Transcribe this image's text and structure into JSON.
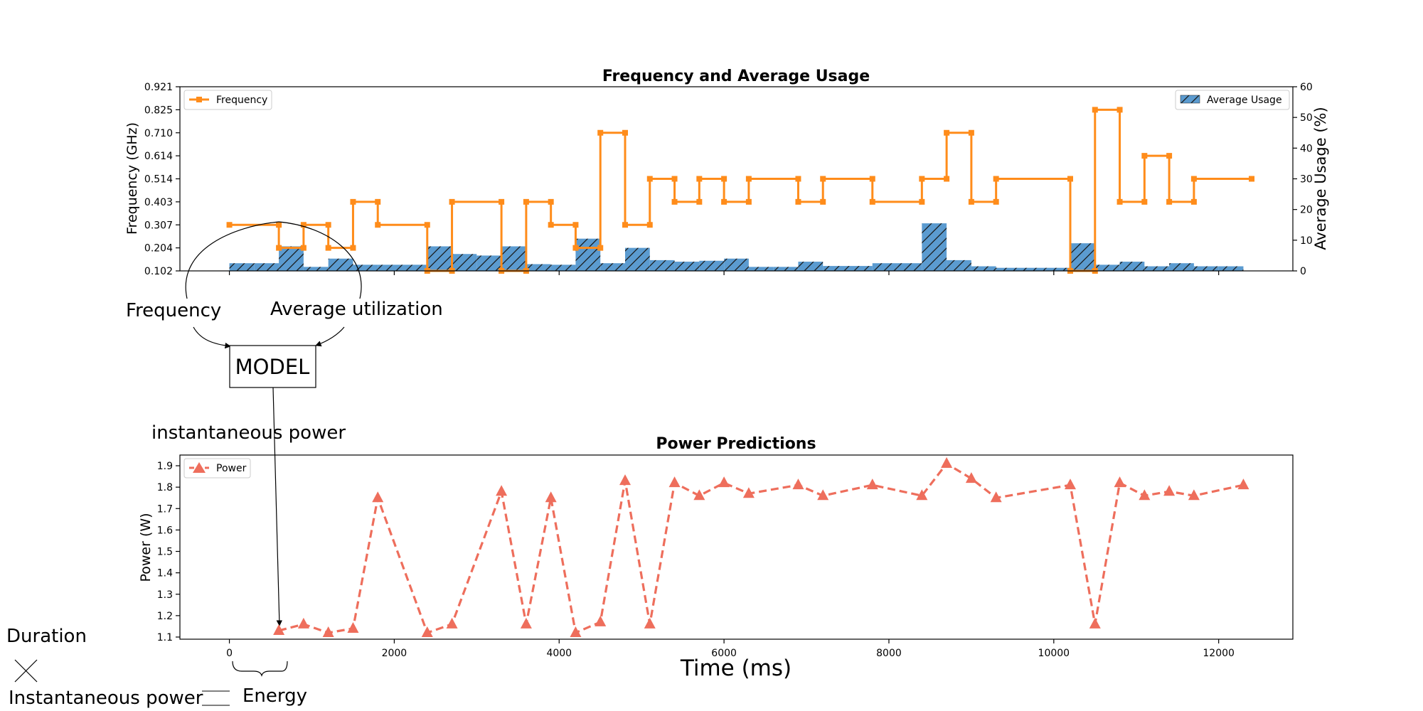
{
  "chart_data": [
    {
      "type": "bar",
      "title": "Frequency and Average Usage",
      "xlim": [
        -600,
        12900
      ],
      "ylabel_left": "Frequency (GHz)",
      "ylabel_right": "Average Usage (%)",
      "left_ticks": [
        "0.102",
        "0.204",
        "0.307",
        "0.403",
        "0.514",
        "0.614",
        "0.710",
        "0.825",
        "0.921"
      ],
      "right_ticks": [
        "0",
        "10",
        "20",
        "30",
        "40",
        "50",
        "60"
      ],
      "right_ylim": [
        0,
        60
      ],
      "legend_left": {
        "label": "Frequency",
        "placement": "top-left",
        "color": "#ff8c1a"
      },
      "legend_right": {
        "label": "Average Usage",
        "placement": "top-right",
        "color": "#5b9bd0"
      },
      "bar_width": 300,
      "bars": [
        {
          "x": 150,
          "v": 2.5
        },
        {
          "x": 450,
          "v": 2.5
        },
        {
          "x": 750,
          "v": 8
        },
        {
          "x": 1050,
          "v": 1.3
        },
        {
          "x": 1350,
          "v": 4
        },
        {
          "x": 1650,
          "v": 2
        },
        {
          "x": 1950,
          "v": 2
        },
        {
          "x": 2250,
          "v": 2
        },
        {
          "x": 2550,
          "v": 8
        },
        {
          "x": 2850,
          "v": 5.5
        },
        {
          "x": 3150,
          "v": 5
        },
        {
          "x": 3450,
          "v": 8
        },
        {
          "x": 3750,
          "v": 2.2
        },
        {
          "x": 4050,
          "v": 2
        },
        {
          "x": 4350,
          "v": 10.5
        },
        {
          "x": 4650,
          "v": 2.5
        },
        {
          "x": 4950,
          "v": 7.5
        },
        {
          "x": 5250,
          "v": 3.5
        },
        {
          "x": 5550,
          "v": 3
        },
        {
          "x": 5850,
          "v": 3.3
        },
        {
          "x": 6150,
          "v": 4
        },
        {
          "x": 6450,
          "v": 1.3
        },
        {
          "x": 6750,
          "v": 1.3
        },
        {
          "x": 7050,
          "v": 3
        },
        {
          "x": 7350,
          "v": 1.6
        },
        {
          "x": 7650,
          "v": 1.6
        },
        {
          "x": 7950,
          "v": 2.5
        },
        {
          "x": 8250,
          "v": 2.5
        },
        {
          "x": 8550,
          "v": 15.5
        },
        {
          "x": 8850,
          "v": 3.5
        },
        {
          "x": 9150,
          "v": 1.5
        },
        {
          "x": 9450,
          "v": 1
        },
        {
          "x": 9750,
          "v": 1
        },
        {
          "x": 10050,
          "v": 1
        },
        {
          "x": 10350,
          "v": 9
        },
        {
          "x": 10650,
          "v": 2
        },
        {
          "x": 10950,
          "v": 3
        },
        {
          "x": 11250,
          "v": 1.5
        },
        {
          "x": 11550,
          "v": 2.5
        },
        {
          "x": 11850,
          "v": 1.5
        },
        {
          "x": 12150,
          "v": 1.5
        }
      ],
      "frequency_step_series": [
        {
          "x": 0,
          "f": 0.307
        },
        {
          "x": 600,
          "f": 0.307
        },
        {
          "x": 600,
          "f": 0.204
        },
        {
          "x": 900,
          "f": 0.204
        },
        {
          "x": 900,
          "f": 0.307
        },
        {
          "x": 1200,
          "f": 0.307
        },
        {
          "x": 1200,
          "f": 0.204
        },
        {
          "x": 1500,
          "f": 0.204
        },
        {
          "x": 1500,
          "f": 0.403
        },
        {
          "x": 1800,
          "f": 0.403
        },
        {
          "x": 1800,
          "f": 0.307
        },
        {
          "x": 2400,
          "f": 0.307
        },
        {
          "x": 2400,
          "f": 0.102
        },
        {
          "x": 2700,
          "f": 0.102
        },
        {
          "x": 2700,
          "f": 0.403
        },
        {
          "x": 3300,
          "f": 0.403
        },
        {
          "x": 3300,
          "f": 0.102
        },
        {
          "x": 3600,
          "f": 0.102
        },
        {
          "x": 3600,
          "f": 0.403
        },
        {
          "x": 3900,
          "f": 0.403
        },
        {
          "x": 3900,
          "f": 0.307
        },
        {
          "x": 4200,
          "f": 0.307
        },
        {
          "x": 4200,
          "f": 0.204
        },
        {
          "x": 4500,
          "f": 0.204
        },
        {
          "x": 4500,
          "f": 0.71
        },
        {
          "x": 4800,
          "f": 0.71
        },
        {
          "x": 4800,
          "f": 0.307
        },
        {
          "x": 5100,
          "f": 0.307
        },
        {
          "x": 5100,
          "f": 0.514
        },
        {
          "x": 5400,
          "f": 0.514
        },
        {
          "x": 5400,
          "f": 0.403
        },
        {
          "x": 5700,
          "f": 0.403
        },
        {
          "x": 5700,
          "f": 0.514
        },
        {
          "x": 6000,
          "f": 0.514
        },
        {
          "x": 6000,
          "f": 0.403
        },
        {
          "x": 6300,
          "f": 0.403
        },
        {
          "x": 6300,
          "f": 0.514
        },
        {
          "x": 6900,
          "f": 0.514
        },
        {
          "x": 6900,
          "f": 0.403
        },
        {
          "x": 7200,
          "f": 0.403
        },
        {
          "x": 7200,
          "f": 0.514
        },
        {
          "x": 7800,
          "f": 0.514
        },
        {
          "x": 7800,
          "f": 0.403
        },
        {
          "x": 8400,
          "f": 0.403
        },
        {
          "x": 8400,
          "f": 0.514
        },
        {
          "x": 8700,
          "f": 0.514
        },
        {
          "x": 8700,
          "f": 0.71
        },
        {
          "x": 9000,
          "f": 0.71
        },
        {
          "x": 9000,
          "f": 0.403
        },
        {
          "x": 9300,
          "f": 0.403
        },
        {
          "x": 9300,
          "f": 0.514
        },
        {
          "x": 10200,
          "f": 0.514
        },
        {
          "x": 10200,
          "f": 0.102
        },
        {
          "x": 10500,
          "f": 0.102
        },
        {
          "x": 10500,
          "f": 0.825
        },
        {
          "x": 10800,
          "f": 0.825
        },
        {
          "x": 10800,
          "f": 0.403
        },
        {
          "x": 11100,
          "f": 0.403
        },
        {
          "x": 11100,
          "f": 0.614
        },
        {
          "x": 11400,
          "f": 0.614
        },
        {
          "x": 11400,
          "f": 0.403
        },
        {
          "x": 11700,
          "f": 0.403
        },
        {
          "x": 11700,
          "f": 0.514
        },
        {
          "x": 12400,
          "f": 0.514
        }
      ]
    },
    {
      "type": "line",
      "title": "Power Predictions",
      "xlabel": "Time (ms)",
      "ylabel": "Power (W)",
      "xlim": [
        -600,
        12900
      ],
      "ylim": [
        1.09,
        1.95
      ],
      "x_ticks": [
        "0",
        "2000",
        "4000",
        "6000",
        "8000",
        "10000",
        "12000"
      ],
      "y_ticks": [
        "1.1",
        "1.2",
        "1.3",
        "1.4",
        "1.5",
        "1.6",
        "1.7",
        "1.8",
        "1.9"
      ],
      "legend": {
        "label": "Power",
        "placement": "top-left",
        "color": "#ee6e5c"
      },
      "points": [
        {
          "x": 600,
          "y": 1.13
        },
        {
          "x": 900,
          "y": 1.16
        },
        {
          "x": 1200,
          "y": 1.12
        },
        {
          "x": 1500,
          "y": 1.14
        },
        {
          "x": 1800,
          "y": 1.75
        },
        {
          "x": 2400,
          "y": 1.12
        },
        {
          "x": 2700,
          "y": 1.16
        },
        {
          "x": 3300,
          "y": 1.78
        },
        {
          "x": 3600,
          "y": 1.16
        },
        {
          "x": 3900,
          "y": 1.75
        },
        {
          "x": 4200,
          "y": 1.12
        },
        {
          "x": 4500,
          "y": 1.17
        },
        {
          "x": 4800,
          "y": 1.83
        },
        {
          "x": 5100,
          "y": 1.16
        },
        {
          "x": 5400,
          "y": 1.82
        },
        {
          "x": 5700,
          "y": 1.76
        },
        {
          "x": 6000,
          "y": 1.82
        },
        {
          "x": 6300,
          "y": 1.77
        },
        {
          "x": 6900,
          "y": 1.81
        },
        {
          "x": 7200,
          "y": 1.76
        },
        {
          "x": 7800,
          "y": 1.81
        },
        {
          "x": 8400,
          "y": 1.76
        },
        {
          "x": 8700,
          "y": 1.91
        },
        {
          "x": 9000,
          "y": 1.84
        },
        {
          "x": 9300,
          "y": 1.75
        },
        {
          "x": 10200,
          "y": 1.81
        },
        {
          "x": 10500,
          "y": 1.16
        },
        {
          "x": 10800,
          "y": 1.82
        },
        {
          "x": 11100,
          "y": 1.76
        },
        {
          "x": 11400,
          "y": 1.78
        },
        {
          "x": 11700,
          "y": 1.76
        },
        {
          "x": 12300,
          "y": 1.81
        }
      ]
    }
  ],
  "annotations": {
    "frequency": "Frequency",
    "average_utilization": "Average utilization",
    "model": "MODEL",
    "instantaneous_power": "instantaneous power",
    "legend_duration": "Duration",
    "legend_instantaneous_power": "Instantaneous power",
    "legend_energy": "Energy"
  },
  "colors": {
    "frequency_line": "#ff8c1a",
    "bar_fill": "#5b9bd0",
    "power_line": "#ee6e5c",
    "axis": "#000000"
  }
}
